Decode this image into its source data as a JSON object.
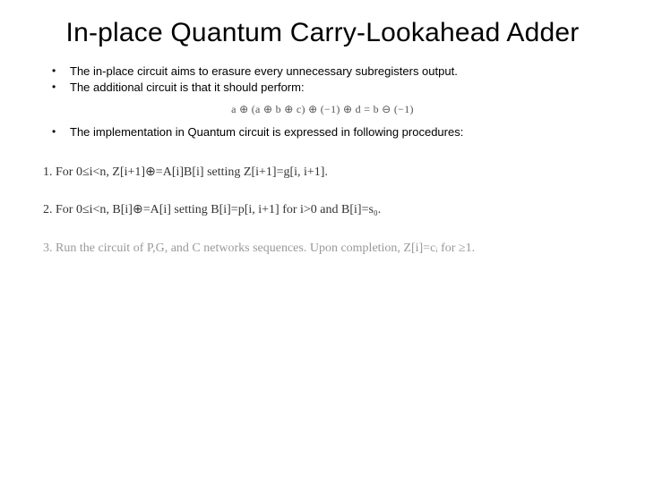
{
  "title": "In-place Quantum Carry-Lookahead Adder",
  "bullets_a": [
    "The in-place circuit aims to erasure every unnecessary subregisters output.",
    "The additional circuit is that it should perform:"
  ],
  "formula": "a ⊕ (a ⊕ b ⊕ c) ⊕ (−1) ⊕ d = b ⊖ (−1)",
  "bullets_b": [
    "The implementation in Quantum circuit is expressed in following procedures:"
  ],
  "procedures": [
    "1.  For 0≤i<n,  Z[i+1]⊕=A[i]B[i]  setting  Z[i+1]=g[i, i+1].",
    "2.  For 0≤i<n,  B[i]⊕=A[i]  setting  B[i]=p[i, i+1] for i>0 and B[i]=s₀.",
    "3.  Run the circuit of P,G, and C networks sequences.  Upon completion, Z[i]=cᵢ for ≥1."
  ],
  "colors": {
    "text": "#000000",
    "formula": "#555555",
    "proc": "#333333",
    "faded": "#999999",
    "background": "#ffffff"
  },
  "fonts": {
    "title_size": 30,
    "bullet_size": 13,
    "formula_size": 12,
    "proc_size": 14
  }
}
